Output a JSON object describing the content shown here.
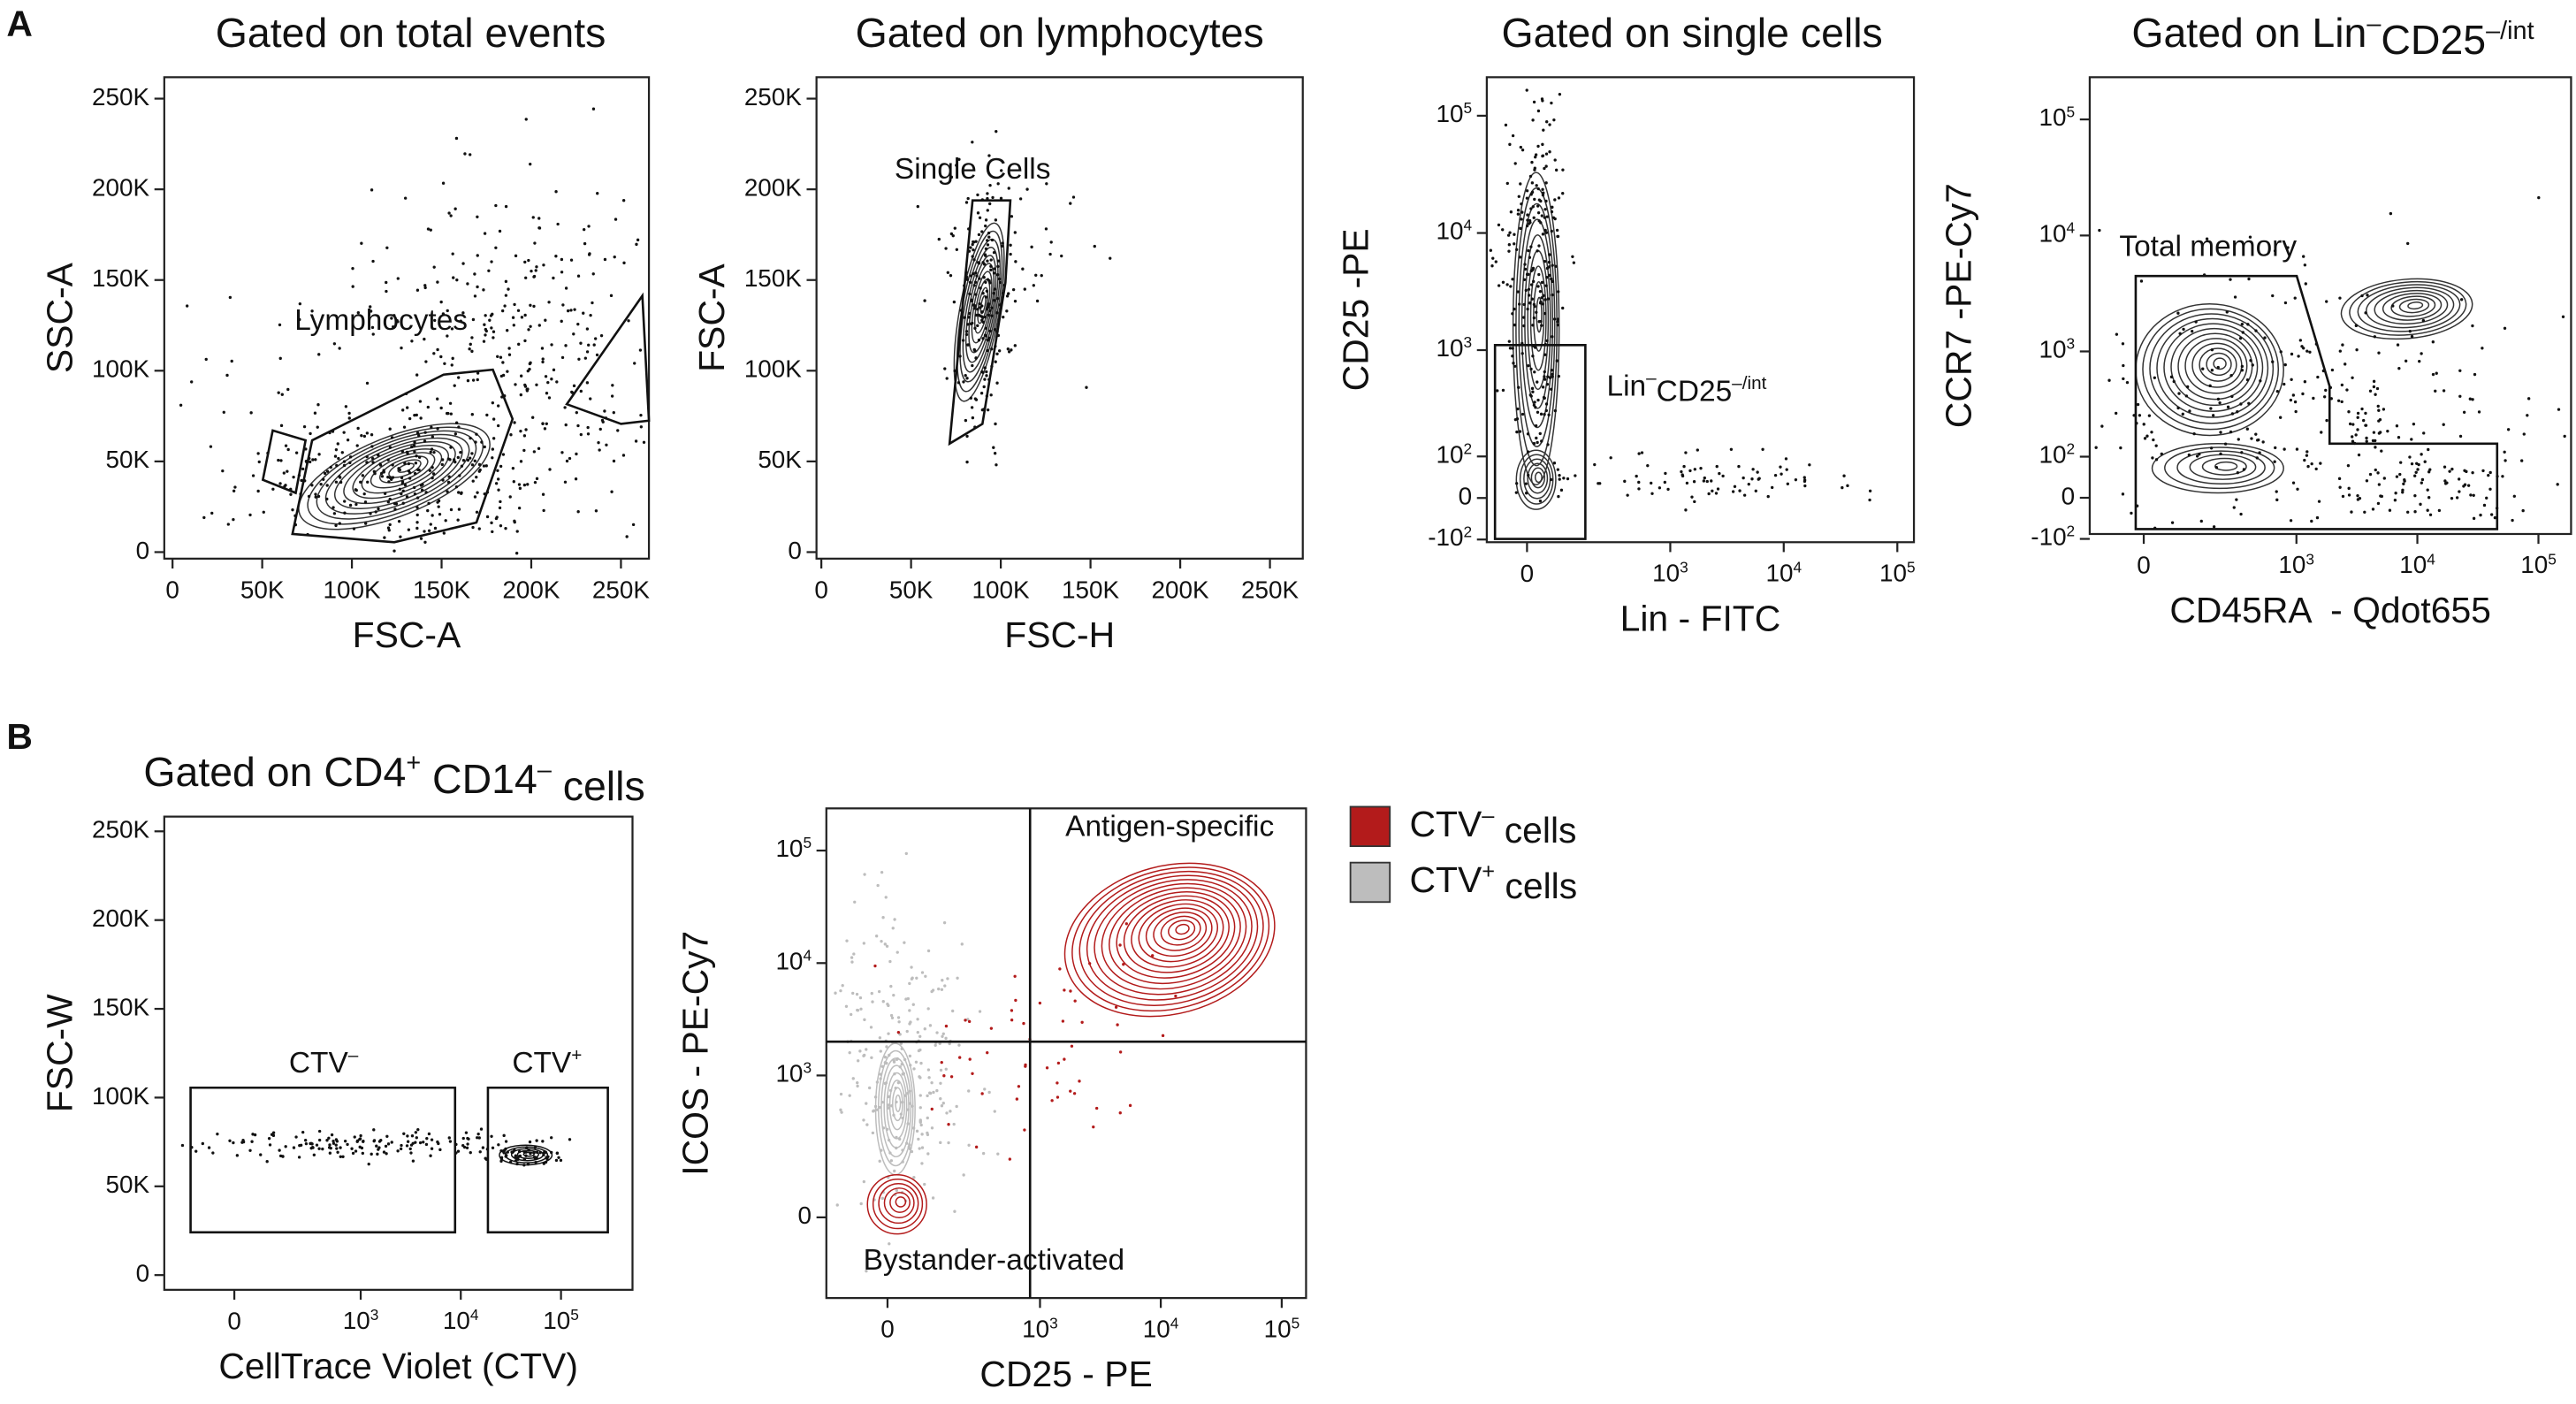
{
  "figure_labels": [
    "A",
    "B"
  ],
  "panels": [
    {
      "title": "Gated on total events",
      "x_label": "FSC-A",
      "y_label": "SSC-A",
      "x_scale": "linear",
      "y_scale": "linear",
      "xlim": [
        -4600,
        265600
      ],
      "ylim": [
        -3600,
        261800
      ],
      "xticks": [
        0,
        {
          "value": 50000,
          "label": "50K"
        },
        {
          "value": 100000,
          "label": "100K"
        },
        {
          "value": 150000,
          "label": "150K"
        },
        {
          "value": 200000,
          "label": "200K"
        },
        {
          "value": 250000,
          "label": "250K"
        }
      ],
      "yticks": [
        0,
        {
          "value": 50000,
          "label": "50K"
        },
        {
          "value": 100000,
          "label": "100K"
        },
        {
          "value": 150000,
          "label": "150K"
        },
        {
          "value": 200000,
          "label": "200K"
        },
        {
          "value": 250000,
          "label": "250K"
        }
      ],
      "gates": [
        "Lymphocytes"
      ]
    },
    {
      "title": "Gated on lymphocytes",
      "x_label": "FSC-H",
      "y_label": "FSC-A",
      "x_scale": "linear",
      "y_scale": "linear",
      "xlim": [
        -2700,
        268300
      ],
      "ylim": [
        -3600,
        261800
      ],
      "xticks": [
        0,
        {
          "value": 50000,
          "label": "50K"
        },
        {
          "value": 100000,
          "label": "100K"
        },
        {
          "value": 150000,
          "label": "150K"
        },
        {
          "value": 200000,
          "label": "200K"
        },
        {
          "value": 250000,
          "label": "250K"
        }
      ],
      "yticks": [
        0,
        {
          "value": 50000,
          "label": "50K"
        },
        {
          "value": 100000,
          "label": "100K"
        },
        {
          "value": 150000,
          "label": "150K"
        },
        {
          "value": 200000,
          "label": "200K"
        },
        {
          "value": 250000,
          "label": "250K"
        }
      ],
      "gates": [
        "Single Cells"
      ]
    },
    {
      "title": "Gated on single cells",
      "x_label": "Lin - FITC",
      "y_label": "CD25 -PE",
      "x_scale": "biexponential",
      "y_scale": "biexponential",
      "xlim": [
        -100,
        140000
      ],
      "ylim": [
        -108,
        213000
      ],
      "xticks": [
        0,
        {
          "value": 1000,
          "label": [
            {
              "text": "10"
            },
            {
              "sup": "3"
            }
          ]
        },
        {
          "value": 10000,
          "label": [
            {
              "text": "10"
            },
            {
              "sup": "4"
            }
          ]
        },
        {
          "value": 100000,
          "label": [
            {
              "text": "10"
            },
            {
              "sup": "5"
            }
          ]
        }
      ],
      "yticks": [
        {
          "value": -100,
          "label": [
            {
              "text": "-10"
            },
            {
              "sup": "2"
            }
          ]
        },
        0,
        {
          "value": 100,
          "label": [
            {
              "text": "10"
            },
            {
              "sup": "2"
            }
          ]
        },
        {
          "value": 1000,
          "label": [
            {
              "text": "10"
            },
            {
              "sup": "3"
            }
          ]
        },
        {
          "value": 10000,
          "label": [
            {
              "text": "10"
            },
            {
              "sup": "4"
            }
          ]
        },
        {
          "value": 100000,
          "label": [
            {
              "text": "10"
            },
            {
              "sup": "5"
            }
          ]
        }
      ],
      "gates": [
        [
          {
            "text": "Lin"
          },
          {
            "sup": "–"
          },
          {
            "text": "CD25"
          },
          {
            "sup": "–/int"
          }
        ]
      ]
    },
    {
      "title": [
        {
          "text": "Gated on Lin"
        },
        {
          "sup": "–"
        },
        {
          "text": "CD25"
        },
        {
          "sup": "–/int"
        }
      ],
      "x_label": "CD45RA  - Qdot655",
      "y_label": "CCR7 -PE-Cy7",
      "x_scale": "biexponential",
      "y_scale": "biexponential",
      "xlim": [
        -134,
        186000
      ],
      "ylim": [
        -86,
        231000
      ],
      "xticks": [
        0,
        {
          "value": 1000,
          "label": [
            {
              "text": "10"
            },
            {
              "sup": "3"
            }
          ]
        },
        {
          "value": 10000,
          "label": [
            {
              "text": "10"
            },
            {
              "sup": "4"
            }
          ]
        },
        {
          "value": 100000,
          "label": [
            {
              "text": "10"
            },
            {
              "sup": "5"
            }
          ]
        }
      ],
      "yticks": [
        {
          "value": -100,
          "label": [
            {
              "text": "-10"
            },
            {
              "sup": "2"
            }
          ]
        },
        0,
        {
          "value": 100,
          "label": [
            {
              "text": "10"
            },
            {
              "sup": "2"
            }
          ]
        },
        {
          "value": 1000,
          "label": [
            {
              "text": "10"
            },
            {
              "sup": "3"
            }
          ]
        },
        {
          "value": 10000,
          "label": [
            {
              "text": "10"
            },
            {
              "sup": "4"
            }
          ]
        },
        {
          "value": 100000,
          "label": [
            {
              "text": "10"
            },
            {
              "sup": "5"
            }
          ]
        }
      ],
      "gates": [
        "Total memory"
      ]
    },
    {
      "title": [
        {
          "text": "Gated on CD4"
        },
        {
          "sup": "+"
        },
        {
          "text": " CD14"
        },
        {
          "sup": "–"
        },
        {
          "text": " cells"
        }
      ],
      "x_label": "CellTrace Violet (CTV)",
      "y_label": "FSC-W",
      "x_scale": "biexponential",
      "y_scale": "linear",
      "xlim": [
        -264,
        517000
      ],
      "ylim": [
        -8300,
        258300
      ],
      "xticks": [
        0,
        {
          "value": 1000,
          "label": [
            {
              "text": "10"
            },
            {
              "sup": "3"
            }
          ]
        },
        {
          "value": 10000,
          "label": [
            {
              "text": "10"
            },
            {
              "sup": "4"
            }
          ]
        },
        {
          "value": 100000,
          "label": [
            {
              "text": "10"
            },
            {
              "sup": "5"
            }
          ]
        }
      ],
      "yticks": [
        0,
        {
          "value": 50000,
          "label": "50K"
        },
        {
          "value": 100000,
          "label": "100K"
        },
        {
          "value": 150000,
          "label": "150K"
        },
        {
          "value": 200000,
          "label": "200K"
        },
        {
          "value": 250000,
          "label": "250K"
        }
      ],
      "gates": [
        [
          {
            "text": "CTV"
          },
          {
            "sup": "–"
          }
        ],
        [
          {
            "text": "CTV"
          },
          {
            "sup": "+"
          }
        ]
      ]
    },
    {
      "x_label": "CD25 - PE",
      "y_label": "ICOS - PE-Cy7",
      "x_scale": "biexponential",
      "y_scale": "biexponential",
      "xlim": [
        -159,
        159000
      ],
      "ylim": [
        -276,
        237000
      ],
      "xticks": [
        0,
        {
          "value": 1000,
          "label": [
            {
              "text": "10"
            },
            {
              "sup": "3"
            }
          ]
        },
        {
          "value": 10000,
          "label": [
            {
              "text": "10"
            },
            {
              "sup": "4"
            }
          ]
        },
        {
          "value": 100000,
          "label": [
            {
              "text": "10"
            },
            {
              "sup": "5"
            }
          ]
        }
      ],
      "yticks": [
        0,
        {
          "value": 1000,
          "label": [
            {
              "text": "10"
            },
            {
              "sup": "3"
            }
          ]
        },
        {
          "value": 10000,
          "label": [
            {
              "text": "10"
            },
            {
              "sup": "4"
            }
          ]
        },
        {
          "value": 100000,
          "label": [
            {
              "text": "10"
            },
            {
              "sup": "5"
            }
          ]
        }
      ],
      "gates": [
        "Antigen-specific",
        "Bystander-activated"
      ]
    }
  ],
  "legend": [
    {
      "label": [
        {
          "text": "CTV"
        },
        {
          "sup": "–"
        },
        {
          "text": " cells"
        }
      ],
      "color": "#b31b1b"
    },
    {
      "label": [
        {
          "text": "CTV"
        },
        {
          "sup": "+"
        },
        {
          "text": " cells"
        }
      ],
      "color": "#bdbdbd"
    }
  ]
}
